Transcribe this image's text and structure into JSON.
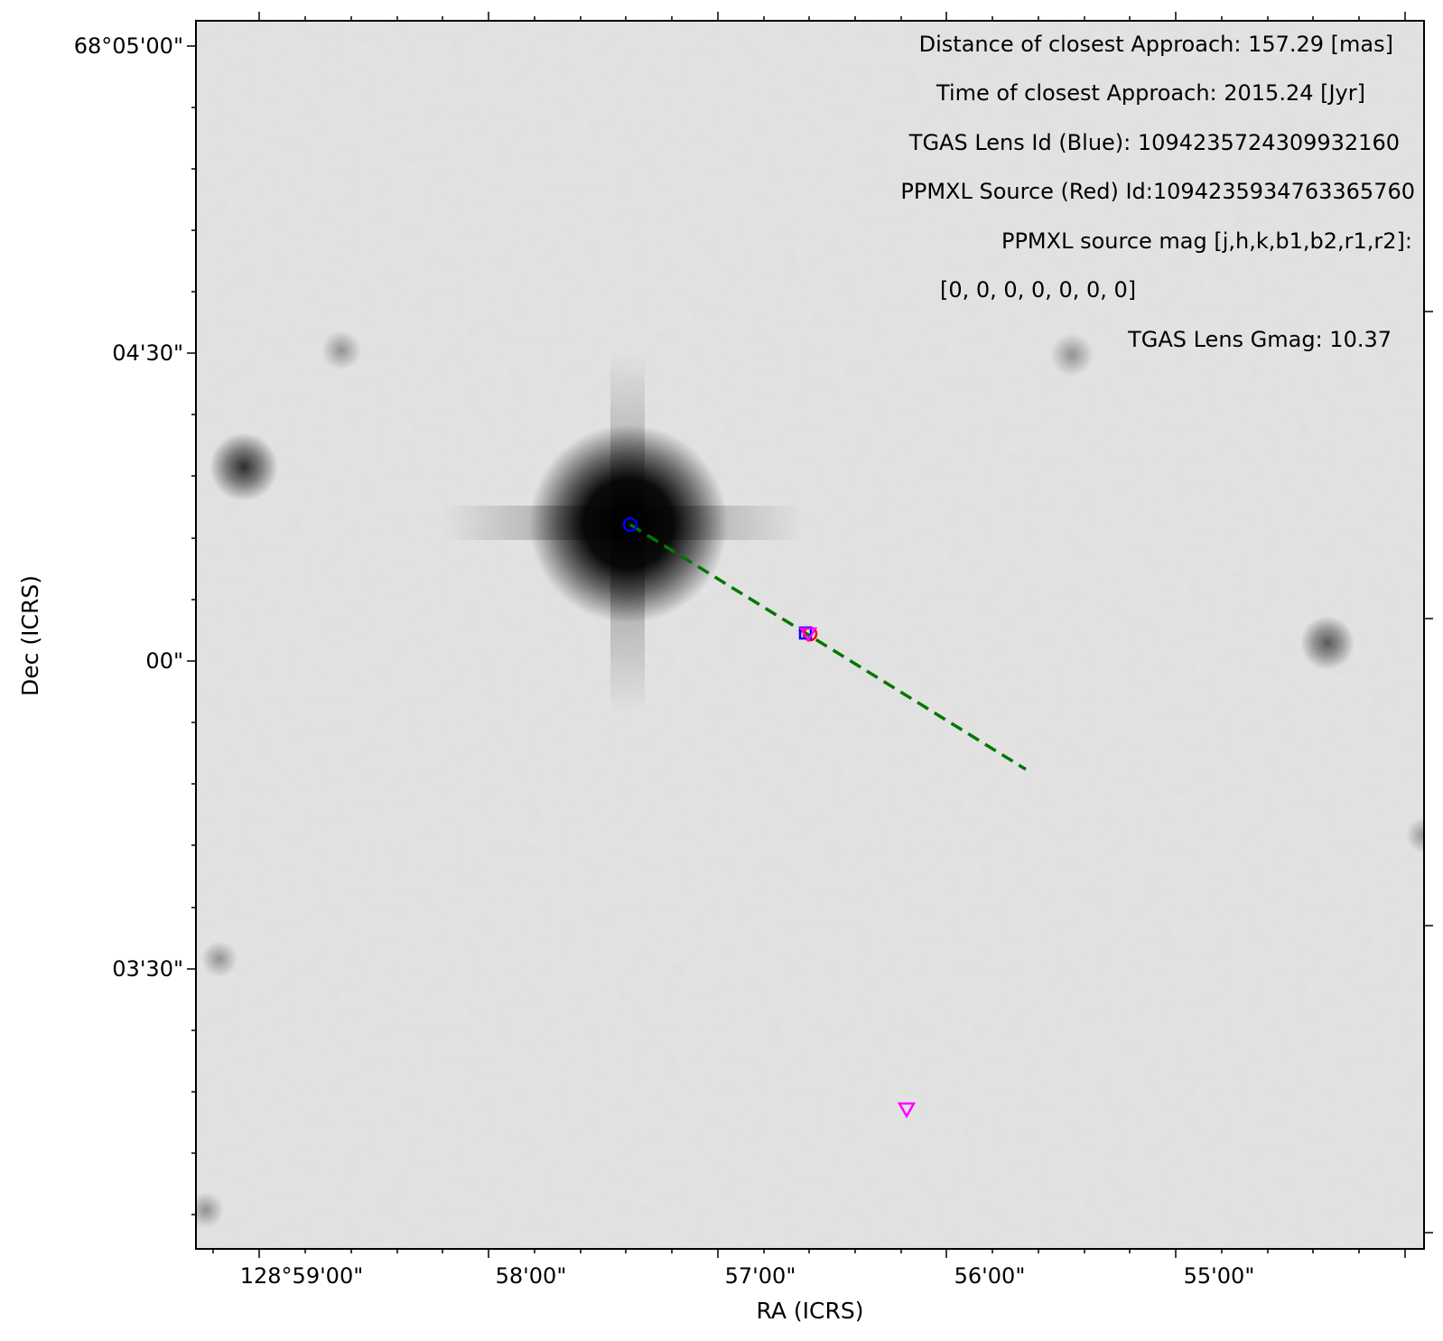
{
  "axes": {
    "xlabel": "RA (ICRS)",
    "ylabel": "Dec (ICRS)",
    "x_tick_labels": [
      "128°59'00\"",
      "58'00\"",
      "57'00\"",
      "56'00\"",
      "55'00\""
    ],
    "y_tick_labels": [
      "68°05'00\"",
      "04'30\"",
      "00\"",
      "03'30\""
    ]
  },
  "annotations": [
    "Distance of closest Approach: 157.29 [mas]",
    "Time of closest Approach: 2015.24 [Jyr]",
    "TGAS Lens Id (Blue): 1094235724309932160",
    "PPMXL Source (Red) Id:1094235934763365760",
    "PPMXL source mag [j,h,k,b1,b2,r1,r2]:",
    "[0, 0, 0, 0, 0, 0, 0]",
    "TGAS Lens Gmag: 10.37"
  ],
  "colors": {
    "lens_marker": "#0000ff",
    "source_marker": "#ff0000",
    "extra_marker": "#ff00ff",
    "trajectory": "#007700",
    "background": "#e4e4e4"
  }
}
